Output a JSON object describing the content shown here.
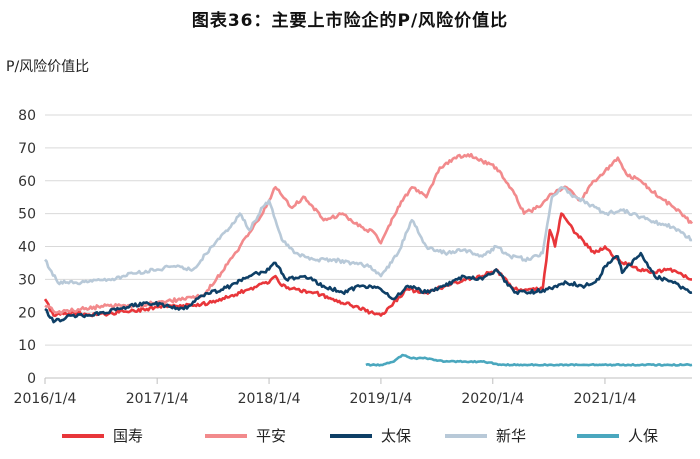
{
  "page": {
    "title": "图表36：主要上市险企的P/风险价值比",
    "y_unit": "P/风险价值比"
  },
  "chart_data": {
    "type": "line",
    "title": "图表36：主要上市险企的P/风险价值比",
    "ylabel": "P/风险价值比",
    "xlabel": "",
    "ylim": [
      0,
      80
    ],
    "yticks": [
      0,
      10,
      20,
      30,
      40,
      50,
      60,
      70,
      80
    ],
    "xlim": [
      "2016-01-04",
      "2021-10-15"
    ],
    "xticks": [
      "2016/1/4",
      "2017/1/4",
      "2018/1/4",
      "2019/1/4",
      "2020/1/4",
      "2021/1/4"
    ],
    "grid": "horizontal",
    "legend": "bottom",
    "series": [
      {
        "name": "国寿",
        "color": "#e8363a",
        "points": [
          [
            "2016-01-04",
            24
          ],
          [
            "2016-02-01",
            19
          ],
          [
            "2016-04-01",
            20
          ],
          [
            "2016-06-01",
            19
          ],
          [
            "2016-09-01",
            20
          ],
          [
            "2016-12-01",
            21
          ],
          [
            "2017-02-01",
            22
          ],
          [
            "2017-05-01",
            22
          ],
          [
            "2017-07-01",
            23
          ],
          [
            "2017-09-01",
            25
          ],
          [
            "2017-11-01",
            27
          ],
          [
            "2017-12-15",
            29
          ],
          [
            "2018-01-04",
            29
          ],
          [
            "2018-01-25",
            31
          ],
          [
            "2018-02-15",
            28
          ],
          [
            "2018-04-01",
            27
          ],
          [
            "2018-06-01",
            26
          ],
          [
            "2018-08-01",
            24
          ],
          [
            "2018-10-01",
            22
          ],
          [
            "2018-12-01",
            20
          ],
          [
            "2019-01-04",
            19
          ],
          [
            "2019-02-15",
            23
          ],
          [
            "2019-04-01",
            27
          ],
          [
            "2019-06-01",
            26
          ],
          [
            "2019-08-01",
            28
          ],
          [
            "2019-10-01",
            30
          ],
          [
            "2019-12-01",
            31
          ],
          [
            "2020-01-15",
            33
          ],
          [
            "2020-03-15",
            27
          ],
          [
            "2020-05-01",
            27
          ],
          [
            "2020-06-15",
            27
          ],
          [
            "2020-07-08",
            45
          ],
          [
            "2020-07-25",
            40
          ],
          [
            "2020-08-15",
            50
          ],
          [
            "2020-10-01",
            44
          ],
          [
            "2020-12-01",
            38
          ],
          [
            "2021-01-04",
            40
          ],
          [
            "2021-02-15",
            36
          ],
          [
            "2021-04-01",
            34
          ],
          [
            "2021-06-01",
            32
          ],
          [
            "2021-08-01",
            33
          ],
          [
            "2021-10-15",
            30
          ]
        ]
      },
      {
        "name": "平安",
        "color": "#f28a8c",
        "points": [
          [
            "2016-01-04",
            22
          ],
          [
            "2016-02-15",
            20
          ],
          [
            "2016-05-01",
            21
          ],
          [
            "2016-08-01",
            22
          ],
          [
            "2016-11-01",
            22
          ],
          [
            "2017-01-04",
            23
          ],
          [
            "2017-04-01",
            24
          ],
          [
            "2017-06-01",
            25
          ],
          [
            "2017-08-01",
            32
          ],
          [
            "2017-10-01",
            40
          ],
          [
            "2017-12-01",
            48
          ],
          [
            "2018-01-04",
            54
          ],
          [
            "2018-01-25",
            58
          ],
          [
            "2018-03-15",
            52
          ],
          [
            "2018-05-01",
            55
          ],
          [
            "2018-07-01",
            48
          ],
          [
            "2018-09-01",
            50
          ],
          [
            "2018-11-01",
            46
          ],
          [
            "2018-12-15",
            44
          ],
          [
            "2019-01-04",
            41
          ],
          [
            "2019-03-01",
            52
          ],
          [
            "2019-04-15",
            58
          ],
          [
            "2019-06-01",
            55
          ],
          [
            "2019-07-15",
            64
          ],
          [
            "2019-09-01",
            67
          ],
          [
            "2019-10-15",
            68
          ],
          [
            "2019-12-01",
            66
          ],
          [
            "2020-01-15",
            64
          ],
          [
            "2020-03-15",
            56
          ],
          [
            "2020-04-15",
            50
          ],
          [
            "2020-06-01",
            52
          ],
          [
            "2020-07-15",
            56
          ],
          [
            "2020-09-01",
            58
          ],
          [
            "2020-10-15",
            54
          ],
          [
            "2020-12-01",
            60
          ],
          [
            "2021-01-04",
            63
          ],
          [
            "2021-02-15",
            67
          ],
          [
            "2021-03-15",
            62
          ],
          [
            "2021-05-01",
            60
          ],
          [
            "2021-07-01",
            55
          ],
          [
            "2021-08-15",
            52
          ],
          [
            "2021-10-15",
            47
          ]
        ]
      },
      {
        "name": "太保",
        "color": "#0e3f66",
        "points": [
          [
            "2016-01-04",
            21
          ],
          [
            "2016-02-01",
            17
          ],
          [
            "2016-04-01",
            19
          ],
          [
            "2016-06-01",
            19
          ],
          [
            "2016-09-01",
            21
          ],
          [
            "2016-12-01",
            23
          ],
          [
            "2017-02-01",
            22
          ],
          [
            "2017-04-01",
            21
          ],
          [
            "2017-06-01",
            25
          ],
          [
            "2017-09-01",
            28
          ],
          [
            "2017-11-01",
            31
          ],
          [
            "2018-01-04",
            33
          ],
          [
            "2018-01-25",
            35
          ],
          [
            "2018-03-01",
            30
          ],
          [
            "2018-05-01",
            31
          ],
          [
            "2018-07-01",
            28
          ],
          [
            "2018-09-01",
            26
          ],
          [
            "2018-11-01",
            28
          ],
          [
            "2019-01-04",
            27
          ],
          [
            "2019-02-15",
            24
          ],
          [
            "2019-04-01",
            28
          ],
          [
            "2019-06-01",
            26
          ],
          [
            "2019-08-01",
            28
          ],
          [
            "2019-10-01",
            31
          ],
          [
            "2019-12-01",
            30
          ],
          [
            "2020-01-15",
            33
          ],
          [
            "2020-03-15",
            26
          ],
          [
            "2020-05-01",
            26
          ],
          [
            "2020-07-01",
            27
          ],
          [
            "2020-09-01",
            29
          ],
          [
            "2020-11-01",
            28
          ],
          [
            "2020-12-15",
            30
          ],
          [
            "2021-01-04",
            34
          ],
          [
            "2021-02-15",
            37
          ],
          [
            "2021-03-01",
            32
          ],
          [
            "2021-05-01",
            38
          ],
          [
            "2021-06-15",
            31
          ],
          [
            "2021-08-15",
            29
          ],
          [
            "2021-10-15",
            26
          ]
        ]
      },
      {
        "name": "新华",
        "color": "#b8c9d8",
        "points": [
          [
            "2016-01-04",
            36
          ],
          [
            "2016-02-15",
            29
          ],
          [
            "2016-05-01",
            29
          ],
          [
            "2016-08-01",
            30
          ],
          [
            "2016-11-01",
            32
          ],
          [
            "2017-01-04",
            33
          ],
          [
            "2017-03-01",
            34
          ],
          [
            "2017-05-01",
            33
          ],
          [
            "2017-07-01",
            40
          ],
          [
            "2017-09-01",
            46
          ],
          [
            "2017-10-01",
            50
          ],
          [
            "2017-11-01",
            45
          ],
          [
            "2017-12-15",
            52
          ],
          [
            "2018-01-04",
            54
          ],
          [
            "2018-02-15",
            42
          ],
          [
            "2018-04-01",
            38
          ],
          [
            "2018-06-01",
            36
          ],
          [
            "2018-08-01",
            36
          ],
          [
            "2018-10-01",
            35
          ],
          [
            "2018-12-01",
            34
          ],
          [
            "2019-01-04",
            31
          ],
          [
            "2019-03-01",
            38
          ],
          [
            "2019-04-15",
            48
          ],
          [
            "2019-06-01",
            40
          ],
          [
            "2019-08-01",
            38
          ],
          [
            "2019-10-01",
            39
          ],
          [
            "2019-12-01",
            37
          ],
          [
            "2020-01-15",
            40
          ],
          [
            "2020-03-01",
            37
          ],
          [
            "2020-05-01",
            36
          ],
          [
            "2020-06-15",
            38
          ],
          [
            "2020-07-15",
            55
          ],
          [
            "2020-08-15",
            58
          ],
          [
            "2020-10-01",
            55
          ],
          [
            "2020-12-01",
            52
          ],
          [
            "2021-01-04",
            50
          ],
          [
            "2021-03-01",
            51
          ],
          [
            "2021-05-01",
            49
          ],
          [
            "2021-07-01",
            47
          ],
          [
            "2021-08-15",
            46
          ],
          [
            "2021-10-15",
            42
          ]
        ]
      },
      {
        "name": "人保",
        "color": "#4aa7be",
        "points": [
          [
            "2018-11-16",
            4
          ],
          [
            "2018-12-15",
            4
          ],
          [
            "2019-01-04",
            4
          ],
          [
            "2019-02-15",
            5
          ],
          [
            "2019-03-15",
            7
          ],
          [
            "2019-04-15",
            6
          ],
          [
            "2019-06-01",
            6
          ],
          [
            "2019-08-01",
            5
          ],
          [
            "2019-10-01",
            5
          ],
          [
            "2019-12-01",
            5
          ],
          [
            "2020-02-01",
            4
          ],
          [
            "2020-05-01",
            4
          ],
          [
            "2020-08-01",
            4
          ],
          [
            "2020-11-01",
            4
          ],
          [
            "2021-02-01",
            4
          ],
          [
            "2021-05-01",
            4
          ],
          [
            "2021-08-01",
            4
          ],
          [
            "2021-10-15",
            4
          ]
        ]
      }
    ]
  }
}
